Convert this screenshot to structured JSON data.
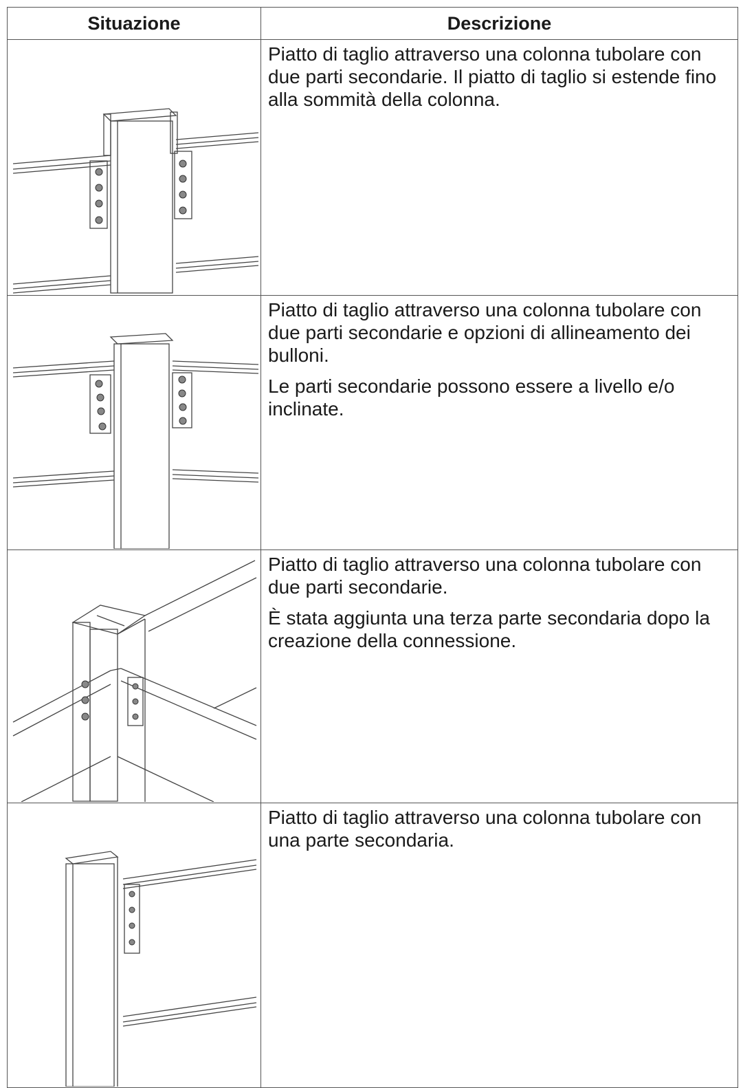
{
  "table": {
    "header": [
      "Situazione",
      "Descrizione"
    ],
    "rows": [
      {
        "description": [
          "Piatto di taglio attraverso una colonna tubolare con due parti secondarie. Il piatto di taglio si estende fino alla sommità della colonna."
        ]
      },
      {
        "description": [
          "Piatto di taglio attraverso una colonna tubolare con due parti secondarie e opzioni di allineamento dei bulloni.",
          "Le parti secondarie possono essere a livello e/o inclinate."
        ]
      },
      {
        "description": [
          "Piatto di taglio attraverso una colonna tubolare con due parti secondarie.",
          "È stata aggiunta una terza parte secondaria dopo la creazione della connessione."
        ]
      },
      {
        "description": [
          "Piatto di taglio attraverso una colonna tubolare con una parte secondaria."
        ]
      }
    ]
  }
}
